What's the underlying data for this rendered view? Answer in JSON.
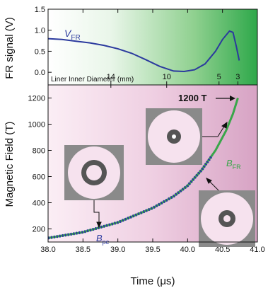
{
  "chart_data": [
    {
      "type": "line",
      "ylabel": "FR signal (V)",
      "ylim": [
        -0.3,
        1.5
      ],
      "yticks": [
        0.0,
        0.5,
        1.0,
        1.5
      ],
      "top_axis": {
        "label": "Liner Inner Diameter (mm)",
        "ticks": [
          {
            "label": "14",
            "x": 38.9
          },
          {
            "label": "10",
            "x": 39.7
          },
          {
            "label": "5",
            "x": 40.45
          },
          {
            "label": "3",
            "x": 40.72
          }
        ]
      },
      "series": [
        {
          "name": "V",
          "subscript": "FR",
          "color": "#2b3a9e",
          "x": [
            38.0,
            38.2,
            38.4,
            38.6,
            38.8,
            39.0,
            39.2,
            39.4,
            39.6,
            39.8,
            39.95,
            40.1,
            40.25,
            40.4,
            40.5,
            40.6,
            40.65,
            40.7,
            40.74
          ],
          "y": [
            0.8,
            0.78,
            0.74,
            0.7,
            0.64,
            0.56,
            0.45,
            0.3,
            0.14,
            0.03,
            0.02,
            0.06,
            0.2,
            0.5,
            0.78,
            0.98,
            0.95,
            0.6,
            0.28
          ]
        }
      ]
    },
    {
      "type": "line",
      "xlabel": "Time (μs)",
      "ylabel": "Magnetic Field (T)",
      "xlim": [
        38.0,
        41.0
      ],
      "ylim": [
        100,
        1300
      ],
      "xticks": [
        38.0,
        38.5,
        39.0,
        39.5,
        40.0,
        40.5,
        41.0
      ],
      "yticks": [
        200,
        400,
        600,
        800,
        1000,
        1200
      ],
      "annotations": {
        "peak_label": "1200 T",
        "peak_point": {
          "x": 40.72,
          "y": 1200
        }
      },
      "series": [
        {
          "name": "B",
          "subscript": "pc",
          "color": "#2b3a9e",
          "dashed": true,
          "x": [
            38.0,
            38.5,
            39.0,
            39.5,
            39.8,
            40.0,
            40.2,
            40.35
          ],
          "y": [
            130,
            175,
            250,
            360,
            450,
            530,
            650,
            760
          ]
        },
        {
          "name": "B",
          "subscript": "FR",
          "color": "#3aa64a",
          "dashed": false,
          "x": [
            38.0,
            38.5,
            39.0,
            39.5,
            39.8,
            40.0,
            40.2,
            40.4,
            40.55,
            40.65,
            40.72
          ],
          "y": [
            130,
            175,
            250,
            360,
            450,
            530,
            650,
            800,
            950,
            1080,
            1200
          ]
        }
      ]
    }
  ]
}
